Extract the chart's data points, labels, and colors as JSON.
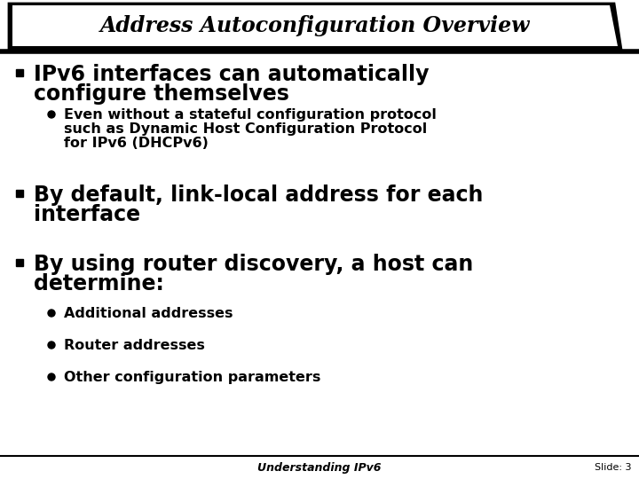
{
  "title": "Address Autoconfiguration Overview",
  "bg_color": "#ffffff",
  "footer_text": "Understanding IPv6",
  "footer_right": "Slide: 3",
  "bullet1_line1": "IPv6 interfaces can automatically",
  "bullet1_line2": "configure themselves",
  "sub1_line1": "Even without a stateful configuration protocol",
  "sub1_line2": "such as Dynamic Host Configuration Protocol",
  "sub1_line3": "for IPv6 (DHCPv6)",
  "bullet2_line1": "By default, link-local address for each",
  "bullet2_line2": "interface",
  "bullet3_line1": "By using router discovery, a host can",
  "bullet3_line2": "determine:",
  "sub2": "Additional addresses",
  "sub3": "Router addresses",
  "sub4": "Other configuration parameters",
  "title_fontsize": 17,
  "bullet_fontsize": 17,
  "sub_fontsize": 11.5,
  "footer_fontsize": 9
}
